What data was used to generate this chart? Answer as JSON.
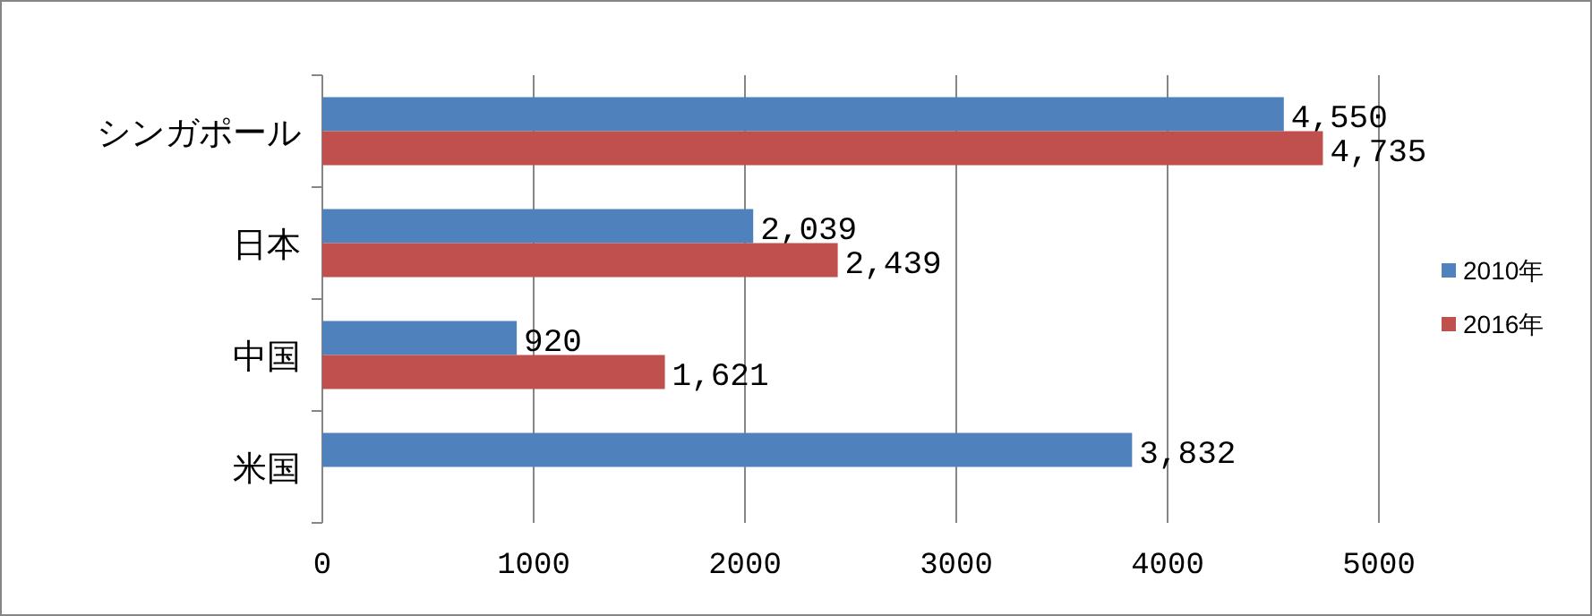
{
  "chart_data": {
    "type": "bar",
    "orientation": "horizontal",
    "categories": [
      "シンガポール",
      "日本",
      "中国",
      "米国"
    ],
    "series": [
      {
        "name": "2010年",
        "color": "#4f81bd",
        "values": [
          4550,
          2039,
          920,
          3832
        ],
        "value_labels": [
          "4,550",
          "2,039",
          "920",
          "3,832"
        ]
      },
      {
        "name": "2016年",
        "color": "#c0504d",
        "values": [
          4735,
          2439,
          1621,
          null
        ],
        "value_labels": [
          "4,735",
          "2,439",
          "1,621",
          null
        ]
      }
    ],
    "xlim": [
      0,
      5000
    ],
    "xticks": [
      0,
      1000,
      2000,
      3000,
      4000,
      5000
    ],
    "grid": "x",
    "legend": "right"
  }
}
